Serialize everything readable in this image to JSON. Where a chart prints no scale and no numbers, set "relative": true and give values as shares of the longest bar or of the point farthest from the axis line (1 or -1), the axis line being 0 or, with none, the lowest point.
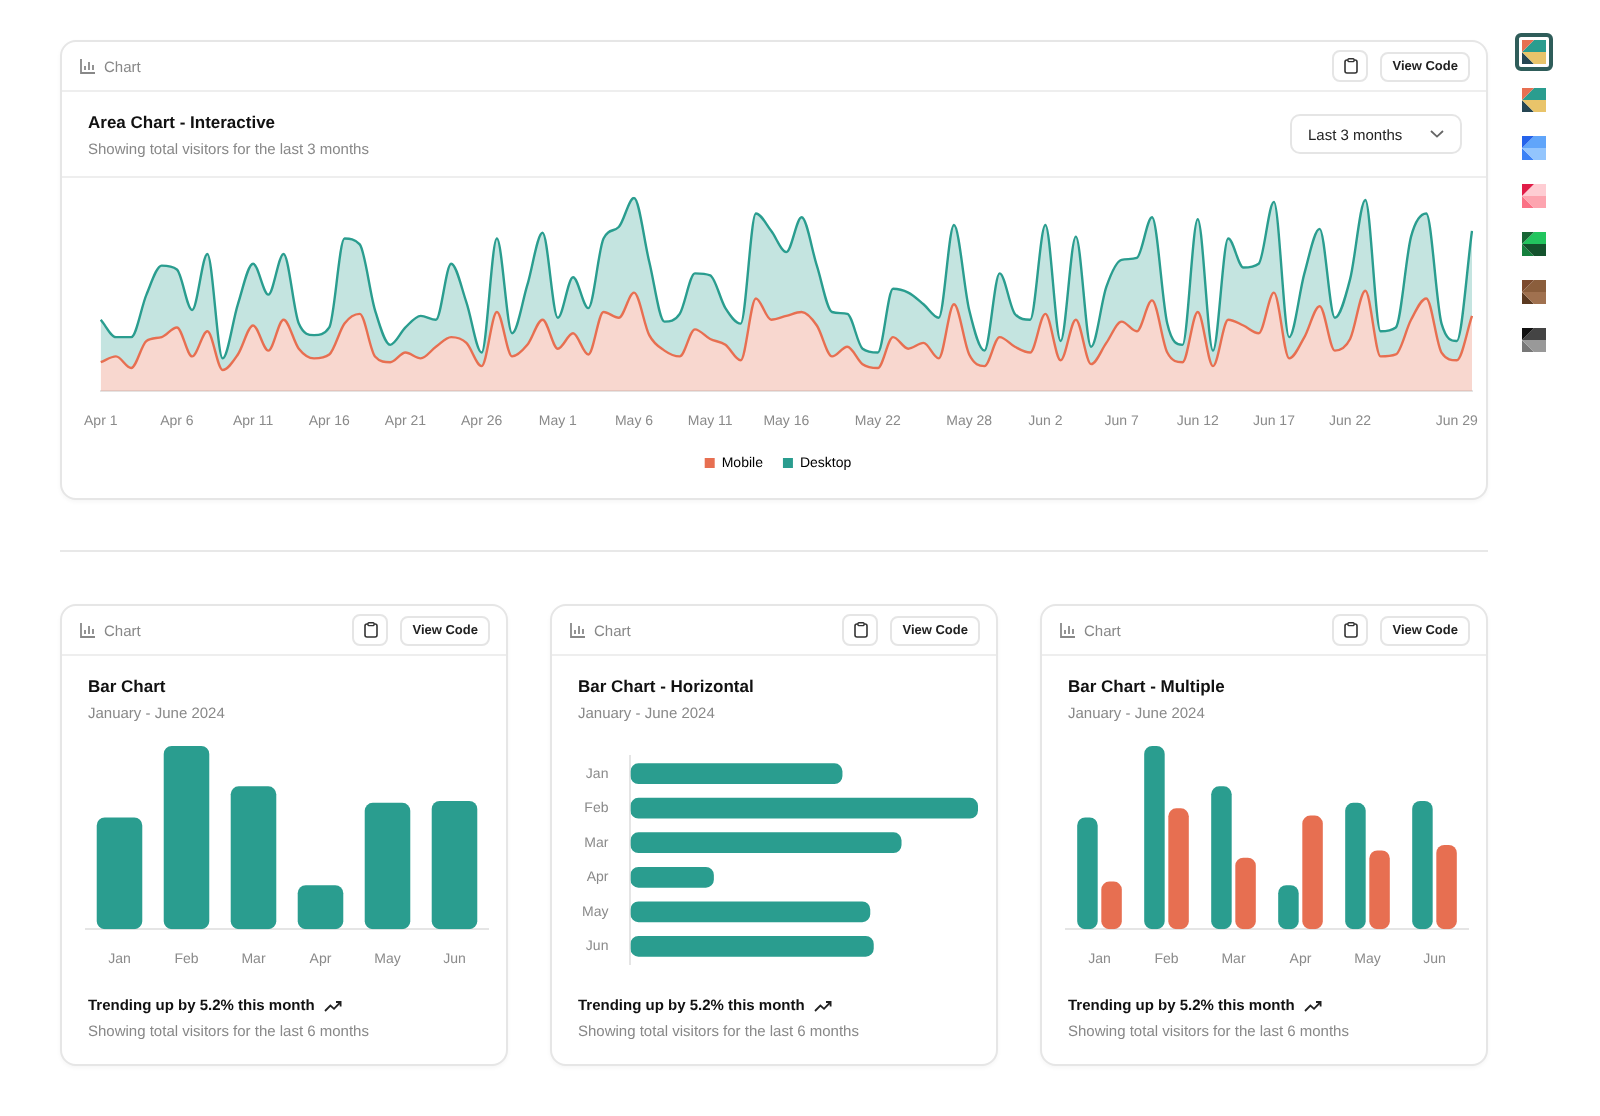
{
  "chart_data": [
    {
      "type": "area",
      "title": "Area Chart - Interactive",
      "subtitle": "Showing total visitors for the last 3 months",
      "annotations": [
        "Chart",
        "View Code",
        "Last 3 months"
      ],
      "relative": true,
      "stacked": true,
      "legend": "bottom",
      "categories": [
        "Apr 1",
        null,
        null,
        null,
        null,
        "Apr 6",
        null,
        null,
        null,
        null,
        "Apr 11",
        null,
        null,
        null,
        null,
        "Apr 16",
        null,
        null,
        null,
        null,
        "Apr 21",
        null,
        null,
        null,
        null,
        "Apr 26",
        null,
        null,
        null,
        null,
        "May 1",
        null,
        null,
        null,
        null,
        "May 6",
        null,
        null,
        null,
        null,
        "May 11",
        null,
        null,
        null,
        null,
        "May 16",
        null,
        null,
        null,
        null,
        null,
        "May 22",
        null,
        null,
        null,
        null,
        null,
        "May 28",
        null,
        null,
        null,
        null,
        "Jun 2",
        null,
        null,
        null,
        null,
        "Jun 7",
        null,
        null,
        null,
        null,
        "Jun 12",
        null,
        null,
        null,
        null,
        "Jun 17",
        null,
        null,
        null,
        null,
        "Jun 22",
        null,
        null,
        null,
        null,
        null,
        null,
        "Jun 29",
        null
      ],
      "series": [
        {
          "name": "Mobile",
          "color": "#e76f51",
          "values": [
            0.15,
            0.18,
            0.12,
            0.26,
            0.28,
            0.33,
            0.18,
            0.31,
            0.11,
            0.19,
            0.34,
            0.21,
            0.37,
            0.22,
            0.17,
            0.19,
            0.35,
            0.4,
            0.18,
            0.15,
            0.2,
            0.17,
            0.23,
            0.28,
            0.25,
            0.13,
            0.41,
            0.18,
            0.24,
            0.37,
            0.22,
            0.3,
            0.19,
            0.41,
            0.38,
            0.51,
            0.29,
            0.21,
            0.18,
            0.32,
            0.27,
            0.24,
            0.16,
            0.48,
            0.37,
            0.39,
            0.41,
            0.34,
            0.18,
            0.23,
            0.14,
            0.12,
            0.28,
            0.22,
            0.25,
            0.17,
            0.45,
            0.19,
            0.13,
            0.28,
            0.23,
            0.2,
            0.4,
            0.16,
            0.37,
            0.14,
            0.25,
            0.36,
            0.31,
            0.47,
            0.2,
            0.15,
            0.41,
            0.13,
            0.37,
            0.34,
            0.3,
            0.51,
            0.17,
            0.28,
            0.44,
            0.21,
            0.27,
            0.52,
            0.18,
            0.19,
            0.37,
            0.48,
            0.2,
            0.16,
            0.39
          ]
        },
        {
          "name": "Desktop",
          "color": "#2a9d8f",
          "values": [
            0.22,
            0.1,
            0.16,
            0.24,
            0.37,
            0.3,
            0.24,
            0.4,
            0.06,
            0.26,
            0.32,
            0.29,
            0.34,
            0.13,
            0.12,
            0.14,
            0.44,
            0.36,
            0.24,
            0.09,
            0.13,
            0.22,
            0.14,
            0.38,
            0.21,
            0.07,
            0.38,
            0.12,
            0.31,
            0.45,
            0.16,
            0.29,
            0.24,
            0.38,
            0.47,
            0.49,
            0.38,
            0.15,
            0.22,
            0.29,
            0.33,
            0.19,
            0.19,
            0.44,
            0.46,
            0.33,
            0.49,
            0.31,
            0.23,
            0.17,
            0.08,
            0.08,
            0.25,
            0.29,
            0.2,
            0.21,
            0.41,
            0.23,
            0.08,
            0.33,
            0.17,
            0.17,
            0.46,
            0.1,
            0.43,
            0.09,
            0.29,
            0.32,
            0.38,
            0.43,
            0.15,
            0.09,
            0.48,
            0.08,
            0.42,
            0.3,
            0.36,
            0.47,
            0.11,
            0.33,
            0.4,
            0.17,
            0.31,
            0.47,
            0.13,
            0.14,
            0.43,
            0.44,
            0.15,
            0.1,
            0.44
          ]
        }
      ]
    },
    {
      "type": "bar",
      "title": "Bar Chart",
      "subtitle": "January - June 2024",
      "annotations": [
        "Chart",
        "View Code",
        "Trending up by 5.2% this month",
        "Showing total visitors for the last 6 months"
      ],
      "relative": true,
      "categories": [
        "Jan",
        "Feb",
        "Mar",
        "Apr",
        "May",
        "Jun"
      ],
      "series": [
        {
          "color": "#2a9d8f",
          "values": [
            0.61,
            1,
            0.78,
            0.24,
            0.69,
            0.7
          ]
        }
      ]
    },
    {
      "type": "bar",
      "orientation": "horizontal",
      "title": "Bar Chart - Horizontal",
      "subtitle": "January - June 2024",
      "annotations": [
        "Chart",
        "View Code",
        "Trending up by 5.2% this month",
        "Showing total visitors for the last 6 months"
      ],
      "relative": true,
      "categories": [
        "Jan",
        "Feb",
        "Mar",
        "Apr",
        "May",
        "Jun"
      ],
      "series": [
        {
          "color": "#2a9d8f",
          "values": [
            0.61,
            1,
            0.78,
            0.24,
            0.69,
            0.7
          ]
        }
      ]
    },
    {
      "type": "bar",
      "title": "Bar Chart - Multiple",
      "subtitle": "January - June 2024",
      "annotations": [
        "Chart",
        "View Code",
        "Trending up by 5.2% this month",
        "Showing total visitors for the last 6 months"
      ],
      "relative": true,
      "categories": [
        "Jan",
        "Feb",
        "Mar",
        "Apr",
        "May",
        "Jun"
      ],
      "series": [
        {
          "color": "#2a9d8f",
          "values": [
            0.61,
            1,
            0.78,
            0.24,
            0.69,
            0.7
          ]
        },
        {
          "color": "#e76f51",
          "values": [
            0.26,
            0.66,
            0.39,
            0.62,
            0.43,
            0.46
          ]
        }
      ]
    }
  ]
}
